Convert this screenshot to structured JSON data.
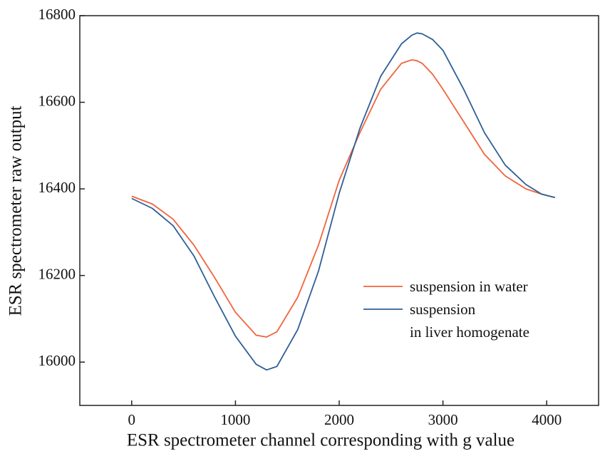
{
  "chart_data": {
    "type": "line",
    "xlabel": "ESR spectrometer channel corresponding with g value",
    "ylabel": "ESR spectrometer raw output",
    "x": [
      0,
      200,
      400,
      600,
      800,
      1000,
      1200,
      1300,
      1400,
      1600,
      1800,
      2000,
      2200,
      2400,
      2600,
      2700,
      2750,
      2800,
      2900,
      3000,
      3200,
      3400,
      3600,
      3800,
      3950,
      4080
    ],
    "series": [
      {
        "name": "suspension in water",
        "color": "#f0643c",
        "values": [
          16383,
          16365,
          16330,
          16270,
          16195,
          16115,
          16062,
          16058,
          16070,
          16150,
          16270,
          16420,
          16530,
          16630,
          16690,
          16698,
          16696,
          16690,
          16665,
          16630,
          16555,
          16480,
          16430,
          16400,
          16388,
          16380
        ]
      },
      {
        "name": "suspension\nin liver homogenate",
        "color": "#2f5f96",
        "values": [
          16378,
          16355,
          16315,
          16245,
          16150,
          16060,
          15995,
          15982,
          15990,
          16075,
          16210,
          16390,
          16540,
          16660,
          16735,
          16755,
          16760,
          16758,
          16745,
          16720,
          16630,
          16530,
          16455,
          16410,
          16388,
          16380
        ]
      }
    ],
    "xlim": [
      -500,
      4500
    ],
    "xticks": [
      0,
      1000,
      2000,
      3000,
      4000
    ],
    "ylim": [
      15900,
      16800
    ],
    "yticks": [
      16000,
      16200,
      16400,
      16600,
      16800
    ],
    "legend": "lower right"
  }
}
